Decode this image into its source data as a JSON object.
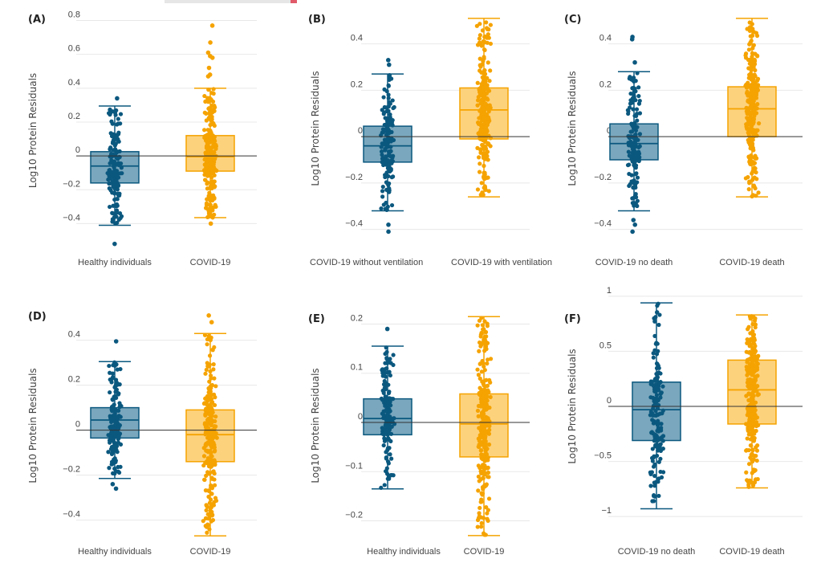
{
  "colors": {
    "group1_point": "#0b587f",
    "group1_box": "#7aa7bd",
    "group2_point": "#f5a300",
    "group2_box": "#fdd27d",
    "zero_line": "#333333",
    "grid": "#e8e8e8"
  },
  "chart_data": [
    {
      "panel": "(A)",
      "type": "box",
      "ylabel": "Log10 Protein Residuals",
      "yticks": [
        0.8,
        0.6,
        0.4,
        0.2,
        0,
        -0.2,
        -0.4
      ],
      "ytick_labels": [
        "0.8",
        "0.6",
        "0.4",
        "0.2",
        "0",
        "−0.2",
        "−0.4"
      ],
      "ylim": [
        -0.55,
        0.85
      ],
      "grid": true,
      "categories": [
        "Healthy individuals",
        "COVID-19"
      ],
      "series": [
        {
          "q1": -0.16,
          "median": -0.06,
          "q3": 0.025,
          "lower_whisker": -0.41,
          "upper_whisker": 0.295,
          "outliers": [
            0.34,
            -0.52
          ]
        },
        {
          "q1": -0.09,
          "median": -0.005,
          "q3": 0.12,
          "lower_whisker": -0.365,
          "upper_whisker": 0.4,
          "outliers": [
            0.77,
            0.67,
            0.61,
            0.59,
            0.58,
            0.52,
            0.48,
            0.47,
            -0.4
          ]
        }
      ]
    },
    {
      "panel": "(B)",
      "type": "box",
      "ylabel": "Log10 Protein Residuals",
      "yticks": [
        0.4,
        0.2,
        0,
        -0.2,
        -0.4
      ],
      "ytick_labels": [
        "0.4",
        "0.2",
        "0",
        "−0.2",
        "−0.4"
      ],
      "ylim": [
        -0.45,
        0.52
      ],
      "grid": true,
      "categories": [
        "COVID-19 without ventilation",
        "COVID-19 with ventilation"
      ],
      "series": [
        {
          "q1": -0.11,
          "median": -0.04,
          "q3": 0.045,
          "lower_whisker": -0.32,
          "upper_whisker": 0.27,
          "outliers": [
            0.33,
            0.31,
            -0.38,
            -0.41
          ]
        },
        {
          "q1": -0.01,
          "median": 0.115,
          "q3": 0.21,
          "lower_whisker": -0.26,
          "upper_whisker": 0.51,
          "outliers": []
        }
      ]
    },
    {
      "panel": "(C)",
      "type": "box",
      "ylabel": "Log10 Protein Residuals",
      "yticks": [
        0.4,
        0.2,
        0,
        -0.2,
        -0.4
      ],
      "ytick_labels": [
        "0.4",
        "0.2",
        "0",
        "−0.2",
        "−0.4"
      ],
      "ylim": [
        -0.45,
        0.52
      ],
      "grid": true,
      "categories": [
        "COVID-19 no death",
        "COVID-19 death"
      ],
      "series": [
        {
          "q1": -0.1,
          "median": -0.03,
          "q3": 0.055,
          "lower_whisker": -0.32,
          "upper_whisker": 0.28,
          "outliers": [
            0.43,
            0.42,
            0.32,
            -0.36,
            -0.38,
            -0.41
          ]
        },
        {
          "q1": 0.0,
          "median": 0.12,
          "q3": 0.215,
          "lower_whisker": -0.26,
          "upper_whisker": 0.51,
          "outliers": []
        }
      ]
    },
    {
      "panel": "(D)",
      "type": "box",
      "ylabel": "Log10 Protein Residuals",
      "yticks": [
        0.4,
        0.2,
        0,
        -0.2,
        -0.4
      ],
      "ytick_labels": [
        "0.4",
        "0.2",
        "0",
        "−0.2",
        "−0.4"
      ],
      "ylim": [
        -0.48,
        0.52
      ],
      "grid": true,
      "categories": [
        "Healthy individuals",
        "COVID-19"
      ],
      "series": [
        {
          "q1": -0.035,
          "median": 0.045,
          "q3": 0.1,
          "lower_whisker": -0.215,
          "upper_whisker": 0.305,
          "outliers": [
            0.395,
            -0.24,
            -0.26
          ]
        },
        {
          "q1": -0.14,
          "median": -0.02,
          "q3": 0.09,
          "lower_whisker": -0.47,
          "upper_whisker": 0.43,
          "outliers": [
            0.51,
            0.48
          ]
        }
      ]
    },
    {
      "panel": "(E)",
      "type": "box",
      "ylabel": "Log10 Protein Residuals",
      "yticks": [
        0.2,
        0.1,
        0,
        -0.1,
        -0.2
      ],
      "ytick_labels": [
        "0.2",
        "0.1",
        "0",
        "−0.1",
        "−0.2"
      ],
      "ylim": [
        -0.235,
        0.222
      ],
      "grid": true,
      "categories": [
        "Healthy individuals",
        "COVID-19"
      ],
      "series": [
        {
          "q1": -0.025,
          "median": 0.008,
          "q3": 0.048,
          "lower_whisker": -0.135,
          "upper_whisker": 0.155,
          "outliers": [
            0.19
          ]
        },
        {
          "q1": -0.07,
          "median": -0.003,
          "q3": 0.058,
          "lower_whisker": -0.23,
          "upper_whisker": 0.215,
          "outliers": []
        }
      ]
    },
    {
      "panel": "(F)",
      "type": "box",
      "ylabel": "Log10 Protein Residuals",
      "yticks": [
        1,
        0.5,
        0,
        -0.5,
        -1
      ],
      "ytick_labels": [
        "1",
        "0.5",
        "0",
        "−0.5",
        "−1"
      ],
      "ylim": [
        -1.05,
        1.05
      ],
      "grid": true,
      "categories": [
        "COVID-19 no death",
        "COVID-19 death"
      ],
      "series": [
        {
          "q1": -0.31,
          "median": -0.03,
          "q3": 0.22,
          "lower_whisker": -0.93,
          "upper_whisker": 0.94,
          "outliers": []
        },
        {
          "q1": -0.16,
          "median": 0.15,
          "q3": 0.42,
          "lower_whisker": -0.74,
          "upper_whisker": 0.83,
          "outliers": []
        }
      ]
    }
  ]
}
